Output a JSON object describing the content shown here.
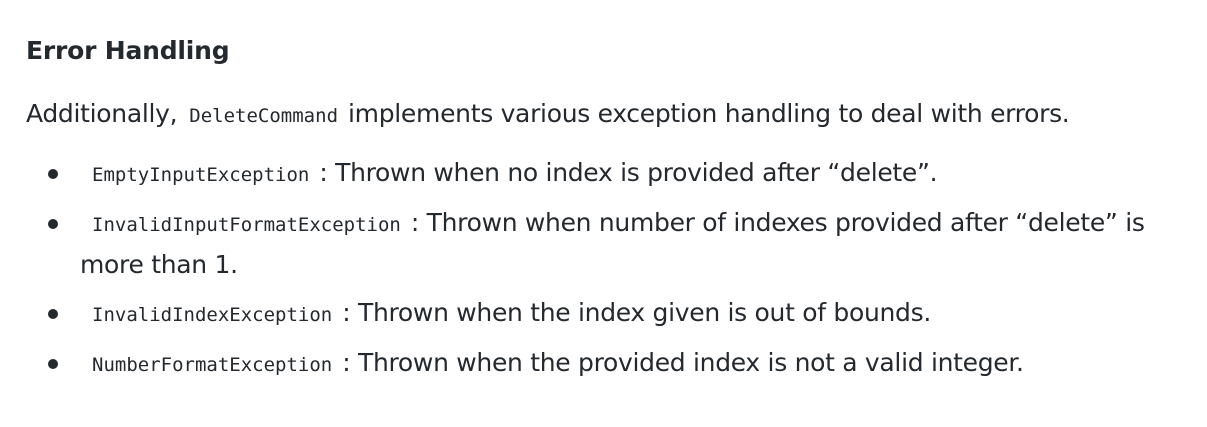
{
  "section": {
    "heading": "Error Handling",
    "intro": {
      "prefix": "Additionally,",
      "code": "DeleteCommand",
      "suffix": "implements various exception handling to deal with errors."
    },
    "exceptions": [
      {
        "code": "EmptyInputException",
        "description": ": Thrown when no index is provided after “delete”."
      },
      {
        "code": "InvalidInputFormatException",
        "description": ": Thrown when number of indexes provided after “delete” is more than 1."
      },
      {
        "code": "InvalidIndexException",
        "description": ": Thrown when the index given is out of bounds."
      },
      {
        "code": "NumberFormatException",
        "description": ": Thrown when the provided index is not a valid integer."
      }
    ]
  }
}
